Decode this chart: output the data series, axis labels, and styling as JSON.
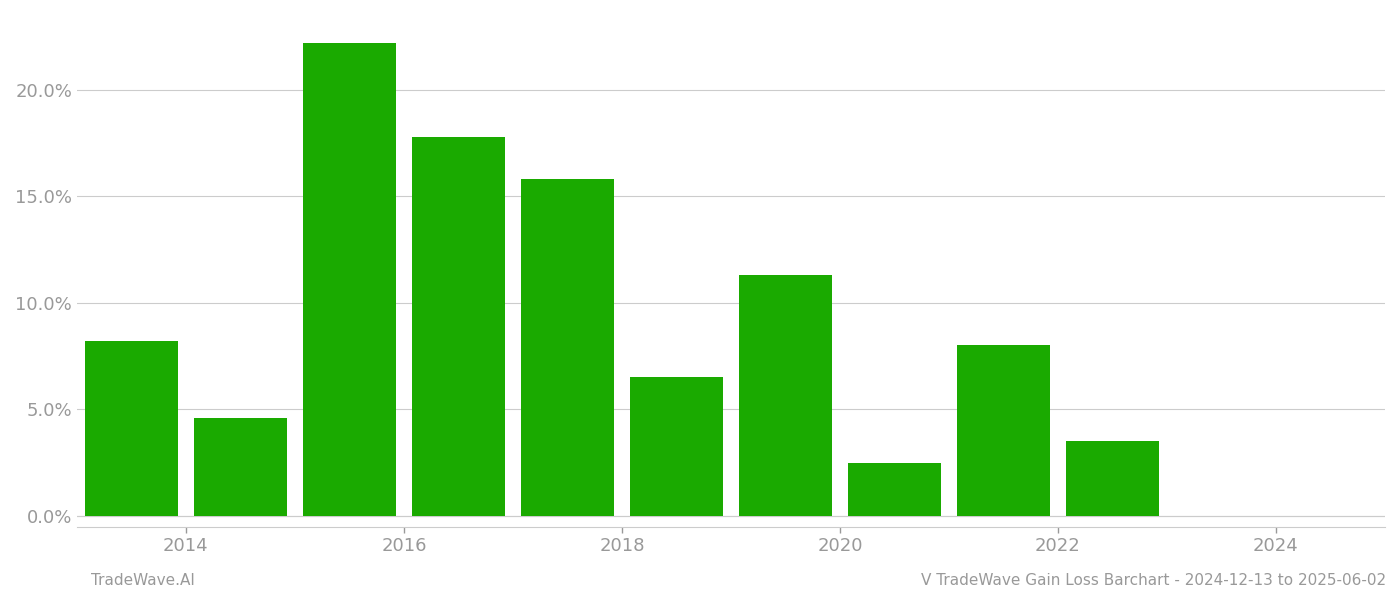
{
  "bar_positions": [
    2013.5,
    2014.5,
    2015.5,
    2016.5,
    2017.5,
    2018.5,
    2019.5,
    2020.5,
    2021.5,
    2022.5
  ],
  "values": [
    0.082,
    0.046,
    0.222,
    0.178,
    0.158,
    0.065,
    0.113,
    0.025,
    0.08,
    0.035
  ],
  "bar_color": "#1aaa00",
  "background_color": "#ffffff",
  "ylabel_ticks": [
    0.0,
    0.05,
    0.1,
    0.15,
    0.2
  ],
  "ylabel_labels": [
    "0.0%",
    "5.0%",
    "10.0%",
    "15.0%",
    "20.0%"
  ],
  "xtick_positions": [
    2014,
    2016,
    2018,
    2020,
    2022,
    2024
  ],
  "xlim_min": 2013.0,
  "xlim_max": 2025.0,
  "ylim_min": -0.005,
  "ylim_max": 0.235,
  "grid_color": "#cccccc",
  "tick_color": "#999999",
  "footer_left": "TradeWave.AI",
  "footer_right": "V TradeWave Gain Loss Barchart - 2024-12-13 to 2025-06-02",
  "bar_width": 0.85,
  "fig_width": 14.0,
  "fig_height": 6.0,
  "dpi": 100
}
